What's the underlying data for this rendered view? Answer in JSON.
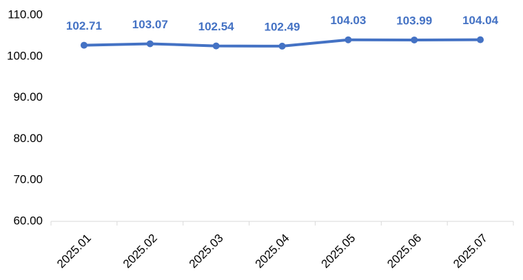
{
  "chart_data": {
    "type": "line",
    "categories": [
      "2025.01",
      "2025.02",
      "2025.03",
      "2025.04",
      "2025.05",
      "2025.06",
      "2025.07"
    ],
    "series": [
      {
        "color": "#4472c4",
        "values": [
          102.71,
          103.07,
          102.54,
          102.49,
          104.03,
          103.99,
          104.04
        ]
      }
    ],
    "ylim": [
      60,
      110
    ],
    "yticks": [
      {
        "value": 60,
        "label": "60.00"
      },
      {
        "value": 70,
        "label": "70.00"
      },
      {
        "value": 80,
        "label": "80.00"
      },
      {
        "value": 90,
        "label": "90.00"
      },
      {
        "value": 100,
        "label": "100.00"
      },
      {
        "value": 110,
        "label": "110.00"
      }
    ],
    "grid": false
  }
}
